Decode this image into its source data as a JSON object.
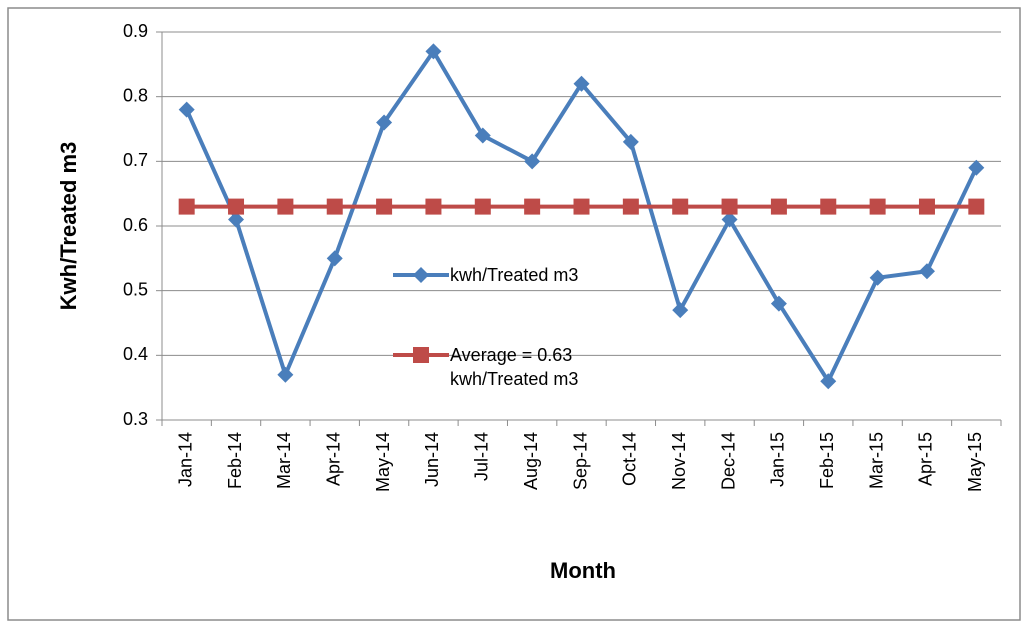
{
  "chart_data": {
    "type": "line",
    "x_label": "Month",
    "y_label": "Kwh/Treated m3",
    "categories": [
      "Jan-14",
      "Feb-14",
      "Mar-14",
      "Apr-14",
      "May-14",
      "Jun-14",
      "Jul-14",
      "Aug-14",
      "Sep-14",
      "Oct-14",
      "Nov-14",
      "Dec-14",
      "Jan-15",
      "Feb-15",
      "Mar-15",
      "Apr-15",
      "May-15"
    ],
    "series": [
      {
        "name": "kwh/Treated m3",
        "color": "#4a7ebb",
        "marker": "diamond",
        "values": [
          0.78,
          0.61,
          0.37,
          0.55,
          0.76,
          0.87,
          0.74,
          0.7,
          0.82,
          0.73,
          0.47,
          0.61,
          0.48,
          0.36,
          0.52,
          0.53,
          0.69
        ]
      },
      {
        "name": "Average = 0.63 kwh/Treated m3",
        "color": "#be4b48",
        "marker": "square",
        "values": [
          0.63,
          0.63,
          0.63,
          0.63,
          0.63,
          0.63,
          0.63,
          0.63,
          0.63,
          0.63,
          0.63,
          0.63,
          0.63,
          0.63,
          0.63,
          0.63,
          0.63
        ]
      }
    ],
    "ylim": [
      0.3,
      0.9
    ],
    "yticks": [
      0.3,
      0.4,
      0.5,
      0.6,
      0.7,
      0.8,
      0.9
    ],
    "grid": true
  }
}
